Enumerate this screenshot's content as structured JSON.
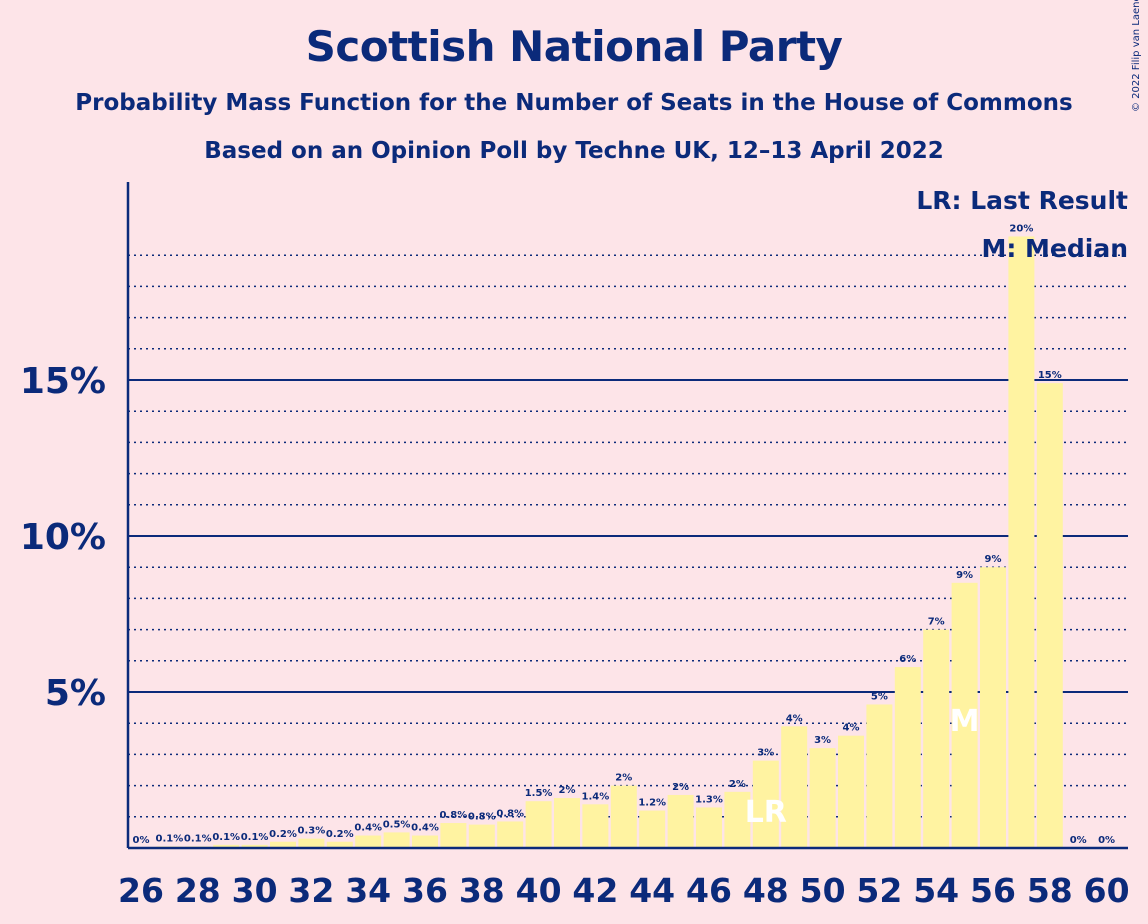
{
  "title": "Scottish National Party",
  "subtitle": "Probability Mass Function for the Number of Seats in the House of Commons",
  "subtitle2": "Based on an Opinion Poll by Techne UK, 12–13 April 2022",
  "copyright": "© 2022 Filip van Laenen",
  "legend": {
    "last_result": "LR: Last Result",
    "median": "M: Median"
  },
  "colors": {
    "background": "#fde4e8",
    "bar": "#fff3a1",
    "axis": "#0b2a7a",
    "text": "#0b2a7a",
    "marker": "#ffffff"
  },
  "chart_data": {
    "type": "bar",
    "title": "Scottish National Party",
    "subtitle": "Probability Mass Function for the Number of Seats in the House of Commons",
    "xlabel": "",
    "ylabel": "",
    "x": [
      26,
      27,
      28,
      29,
      30,
      31,
      32,
      33,
      34,
      35,
      36,
      37,
      38,
      39,
      40,
      41,
      42,
      43,
      44,
      45,
      46,
      47,
      48,
      49,
      50,
      51,
      52,
      53,
      54,
      55,
      56,
      57,
      58,
      59,
      60
    ],
    "values": [
      0,
      0.05,
      0.05,
      0.1,
      0.1,
      0.2,
      0.3,
      0.2,
      0.4,
      0.5,
      0.4,
      0.8,
      0.75,
      0.85,
      1.5,
      1.6,
      1.4,
      2.0,
      1.2,
      1.7,
      1.3,
      1.8,
      2.8,
      3.9,
      3.2,
      3.6,
      4.6,
      5.8,
      7.0,
      8.5,
      9.0,
      19.6,
      14.9,
      0,
      0
    ],
    "labels": [
      "0%",
      "0.1%",
      "0.1%",
      "0.1%",
      "0.1%",
      "0.2%",
      "0.3%",
      "0.2%",
      "0.4%",
      "0.5%",
      "0.4%",
      "0.8%",
      "0.8%",
      "0.8%",
      "1.5%",
      "2%",
      "1.4%",
      "2%",
      "1.2%",
      "2%",
      "1.3%",
      "2%",
      "3%",
      "4%",
      "3%",
      "4%",
      "5%",
      "6%",
      "7%",
      "9%",
      "9%",
      "20%",
      "15%",
      "0%",
      "0%"
    ],
    "xticks": [
      "26",
      "28",
      "30",
      "32",
      "34",
      "36",
      "38",
      "40",
      "42",
      "44",
      "46",
      "48",
      "50",
      "52",
      "54",
      "56",
      "58",
      "60"
    ],
    "yticks": [
      {
        "value": 5,
        "label": "5%"
      },
      {
        "value": 10,
        "label": "10%"
      },
      {
        "value": 15,
        "label": "15%"
      }
    ],
    "ylim": [
      0,
      21
    ],
    "grid": true,
    "last_result": {
      "x": 48,
      "label": "LR"
    },
    "median": {
      "x": 55,
      "label": "M"
    }
  }
}
